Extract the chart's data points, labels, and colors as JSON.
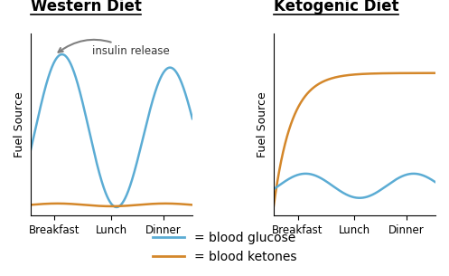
{
  "title_left": "Western Diet",
  "title_right": "Ketogenic Diet",
  "ylabel": "Fuel Source",
  "xtick_labels": [
    "Breakfast",
    "Lunch",
    "Dinner"
  ],
  "annotation_text": "insulin release",
  "glucose_color": "#5bacd4",
  "ketone_color": "#d4872a",
  "legend_glucose": "= blood glucose",
  "legend_ketones": "= blood ketones",
  "bg_color": "#ffffff",
  "title_fontsize": 12,
  "label_fontsize": 9,
  "legend_fontsize": 10
}
